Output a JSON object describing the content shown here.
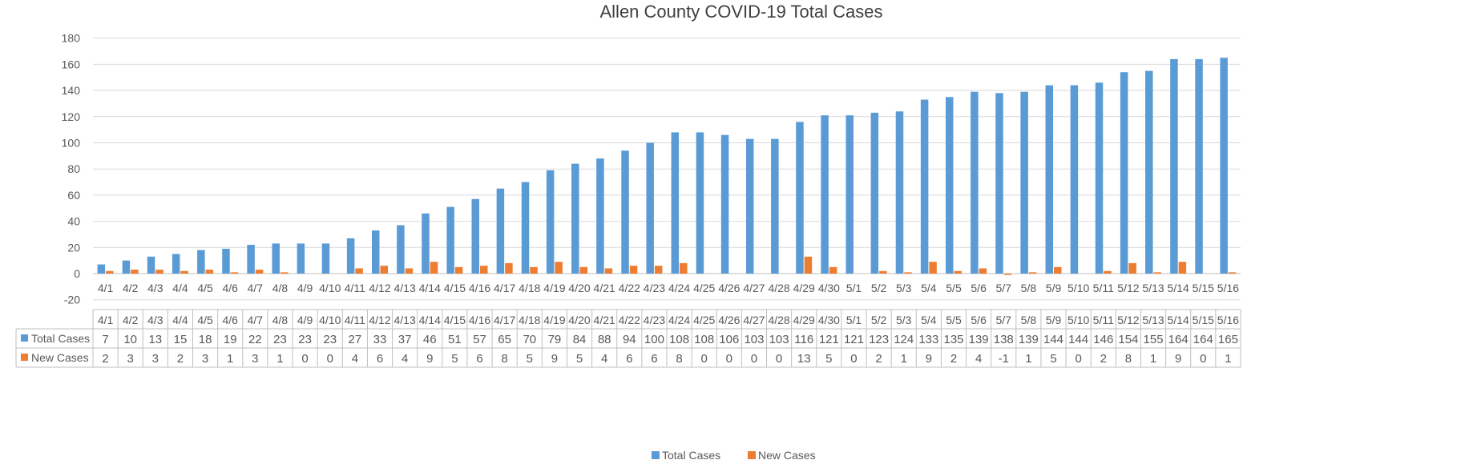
{
  "chart_data": {
    "type": "bar",
    "title": "Allen County COVID-19 Total Cases",
    "xlabel": "",
    "ylabel": "",
    "ylim": [
      -20,
      180
    ],
    "yticks": [
      -20,
      0,
      20,
      40,
      60,
      80,
      100,
      120,
      140,
      160,
      180
    ],
    "grid": true,
    "legend_position": "bottom",
    "data_table": true,
    "categories": [
      "4/1",
      "4/2",
      "4/3",
      "4/4",
      "4/5",
      "4/6",
      "4/7",
      "4/8",
      "4/9",
      "4/10",
      "4/11",
      "4/12",
      "4/13",
      "4/14",
      "4/15",
      "4/16",
      "4/17",
      "4/18",
      "4/19",
      "4/20",
      "4/21",
      "4/22",
      "4/23",
      "4/24",
      "4/25",
      "4/26",
      "4/27",
      "4/28",
      "4/29",
      "4/30",
      "5/1",
      "5/2",
      "5/3",
      "5/4",
      "5/5",
      "5/6",
      "5/7",
      "5/8",
      "5/9",
      "5/10",
      "5/11",
      "5/12",
      "5/13",
      "5/14",
      "5/15",
      "5/16"
    ],
    "series": [
      {
        "name": "Total Cases",
        "color": "#5B9BD5",
        "values": [
          7,
          10,
          13,
          15,
          18,
          19,
          22,
          23,
          23,
          23,
          27,
          33,
          37,
          46,
          51,
          57,
          65,
          70,
          79,
          84,
          88,
          94,
          100,
          108,
          108,
          106,
          103,
          103,
          116,
          121,
          121,
          123,
          124,
          133,
          135,
          139,
          138,
          139,
          144,
          144,
          146,
          154,
          155,
          164,
          164,
          165
        ]
      },
      {
        "name": "New Cases",
        "color": "#ED7D31",
        "values": [
          2,
          3,
          3,
          2,
          3,
          1,
          3,
          1,
          0,
          0,
          4,
          6,
          4,
          9,
          5,
          6,
          8,
          5,
          9,
          5,
          4,
          6,
          6,
          8,
          0,
          0,
          0,
          0,
          13,
          5,
          0,
          2,
          1,
          9,
          2,
          4,
          -1,
          1,
          5,
          0,
          2,
          8,
          1,
          9,
          0,
          1
        ]
      }
    ]
  }
}
